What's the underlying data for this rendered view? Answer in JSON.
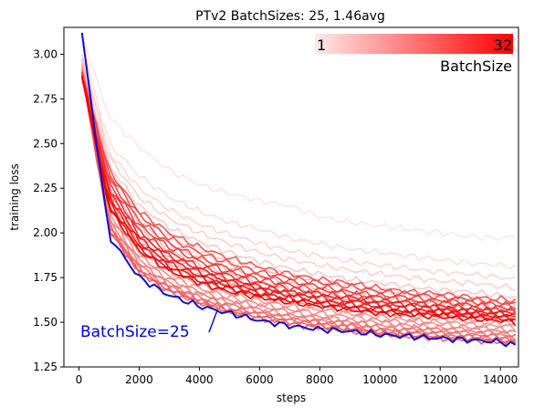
{
  "chart_data": {
    "type": "line",
    "title": "PTv2 BatchSizes: 25, 1.46avg",
    "xlabel": "steps",
    "ylabel": "training loss",
    "xlim": [
      -500,
      14600
    ],
    "ylim": [
      1.25,
      3.15
    ],
    "x_ticks": [
      0,
      2000,
      4000,
      6000,
      8000,
      10000,
      12000,
      14000
    ],
    "y_ticks": [
      1.25,
      1.5,
      1.75,
      2.0,
      2.25,
      2.5,
      2.75,
      3.0
    ],
    "y_tick_labels": [
      "1.25",
      "1.50",
      "1.75",
      "2.00",
      "2.25",
      "2.50",
      "2.75",
      "3.00"
    ],
    "grid": false,
    "colorbar": {
      "label": "BatchSize",
      "min_label": "1",
      "max_label": "32",
      "colors": [
        "#ffe9e9",
        "#ff0000"
      ]
    },
    "series_style": {
      "colormap_low": "#ffe4e4",
      "colormap_high": "#ee0000",
      "highlight_color": "#1010cc"
    },
    "series": [
      {
        "batch": 1,
        "values": [
          3.1,
          2.65,
          2.48,
          2.35,
          2.27,
          2.22,
          2.18,
          2.15,
          2.09,
          2.06,
          2.04,
          2.02,
          2.0,
          1.98,
          1.97,
          1.98
        ]
      },
      {
        "batch": 2,
        "values": [
          3.05,
          2.5,
          2.32,
          2.2,
          2.12,
          2.06,
          2.02,
          1.97,
          1.94,
          1.91,
          1.89,
          1.87,
          1.85,
          1.83,
          1.82,
          1.81
        ]
      },
      {
        "batch": 3,
        "values": [
          3.0,
          2.45,
          2.25,
          2.13,
          2.05,
          1.99,
          1.94,
          1.9,
          1.87,
          1.84,
          1.82,
          1.8,
          1.78,
          1.77,
          1.75,
          1.74
        ]
      },
      {
        "batch": 4,
        "values": [
          3.0,
          2.42,
          2.2,
          2.08,
          2.0,
          1.94,
          1.89,
          1.85,
          1.82,
          1.79,
          1.77,
          1.75,
          1.73,
          1.72,
          1.7,
          1.69
        ]
      },
      {
        "batch": 5,
        "values": [
          2.98,
          2.38,
          2.15,
          2.03,
          1.95,
          1.89,
          1.84,
          1.8,
          1.77,
          1.74,
          1.72,
          1.7,
          1.68,
          1.67,
          1.65,
          1.64
        ]
      },
      {
        "batch": 6,
        "values": [
          2.97,
          2.34,
          2.1,
          1.98,
          1.9,
          1.84,
          1.8,
          1.76,
          1.73,
          1.7,
          1.68,
          1.66,
          1.64,
          1.63,
          1.61,
          1.6
        ]
      },
      {
        "batch": 7,
        "values": [
          2.95,
          2.3,
          2.06,
          1.94,
          1.86,
          1.8,
          1.76,
          1.72,
          1.69,
          1.66,
          1.64,
          1.62,
          1.61,
          1.59,
          1.58,
          1.57
        ]
      },
      {
        "batch": 8,
        "values": [
          2.95,
          2.26,
          2.02,
          1.9,
          1.82,
          1.77,
          1.72,
          1.69,
          1.66,
          1.63,
          1.61,
          1.59,
          1.58,
          1.56,
          1.55,
          1.54
        ]
      },
      {
        "batch": 9,
        "values": [
          2.94,
          2.22,
          1.98,
          1.86,
          1.79,
          1.73,
          1.69,
          1.66,
          1.63,
          1.61,
          1.59,
          1.57,
          1.56,
          1.54,
          1.53,
          1.52
        ]
      },
      {
        "batch": 10,
        "values": [
          2.93,
          2.19,
          1.95,
          1.83,
          1.76,
          1.71,
          1.67,
          1.63,
          1.61,
          1.58,
          1.57,
          1.55,
          1.54,
          1.52,
          1.51,
          1.5
        ]
      },
      {
        "batch": 11,
        "values": [
          2.93,
          2.16,
          1.92,
          1.8,
          1.73,
          1.68,
          1.64,
          1.61,
          1.58,
          1.56,
          1.55,
          1.53,
          1.52,
          1.5,
          1.49,
          1.48
        ]
      },
      {
        "batch": 12,
        "values": [
          2.92,
          2.13,
          1.89,
          1.78,
          1.71,
          1.66,
          1.62,
          1.59,
          1.57,
          1.55,
          1.53,
          1.51,
          1.5,
          1.49,
          1.48,
          1.47
        ]
      },
      {
        "batch": 13,
        "values": [
          2.92,
          2.11,
          1.87,
          1.76,
          1.69,
          1.64,
          1.6,
          1.57,
          1.55,
          1.53,
          1.51,
          1.5,
          1.49,
          1.47,
          1.46,
          1.45
        ]
      },
      {
        "batch": 14,
        "values": [
          2.91,
          2.09,
          1.85,
          1.74,
          1.67,
          1.62,
          1.59,
          1.56,
          1.53,
          1.51,
          1.5,
          1.48,
          1.47,
          1.46,
          1.45,
          1.44
        ]
      },
      {
        "batch": 15,
        "values": [
          2.91,
          2.07,
          1.83,
          1.72,
          1.66,
          1.61,
          1.57,
          1.54,
          1.52,
          1.5,
          1.48,
          1.47,
          1.46,
          1.45,
          1.44,
          1.43
        ]
      },
      {
        "batch": 16,
        "values": [
          2.9,
          2.05,
          1.82,
          1.71,
          1.64,
          1.6,
          1.56,
          1.53,
          1.51,
          1.49,
          1.47,
          1.46,
          1.45,
          1.44,
          1.43,
          1.42
        ]
      },
      {
        "batch": 17,
        "values": [
          2.9,
          2.04,
          1.8,
          1.7,
          1.63,
          1.58,
          1.55,
          1.52,
          1.5,
          1.48,
          1.46,
          1.45,
          1.44,
          1.43,
          1.42,
          1.41
        ]
      },
      {
        "batch": 18,
        "values": [
          2.9,
          2.03,
          1.79,
          1.69,
          1.62,
          1.57,
          1.54,
          1.51,
          1.49,
          1.47,
          1.45,
          1.44,
          1.43,
          1.42,
          1.41,
          1.4
        ]
      },
      {
        "batch": 19,
        "values": [
          2.89,
          2.02,
          1.78,
          1.68,
          1.61,
          1.56,
          1.53,
          1.5,
          1.48,
          1.46,
          1.44,
          1.43,
          1.42,
          1.41,
          1.4,
          1.39
        ]
      },
      {
        "batch": 20,
        "values": [
          2.89,
          2.02,
          1.78,
          1.67,
          1.61,
          1.56,
          1.52,
          1.49,
          1.47,
          1.45,
          1.44,
          1.42,
          1.41,
          1.4,
          1.39,
          1.39
        ]
      },
      {
        "batch": 21,
        "values": [
          2.9,
          2.35,
          2.12,
          2.0,
          1.92,
          1.86,
          1.81,
          1.77,
          1.74,
          1.72,
          1.69,
          1.67,
          1.66,
          1.64,
          1.63,
          1.62
        ]
      },
      {
        "batch": 22,
        "values": [
          2.9,
          2.33,
          2.1,
          1.97,
          1.89,
          1.83,
          1.78,
          1.75,
          1.72,
          1.7,
          1.67,
          1.66,
          1.64,
          1.63,
          1.61,
          1.6
        ]
      },
      {
        "batch": 23,
        "values": [
          2.9,
          2.3,
          2.07,
          1.94,
          1.86,
          1.8,
          1.76,
          1.73,
          1.7,
          1.67,
          1.65,
          1.64,
          1.62,
          1.61,
          1.6,
          1.59
        ]
      },
      {
        "batch": 24,
        "values": [
          2.89,
          2.28,
          2.04,
          1.92,
          1.84,
          1.78,
          1.74,
          1.71,
          1.68,
          1.66,
          1.64,
          1.62,
          1.61,
          1.6,
          1.58,
          1.57
        ]
      },
      {
        "batch": 26,
        "values": [
          2.89,
          2.25,
          2.01,
          1.89,
          1.81,
          1.76,
          1.72,
          1.69,
          1.66,
          1.64,
          1.62,
          1.61,
          1.59,
          1.58,
          1.57,
          1.56
        ]
      },
      {
        "batch": 27,
        "values": [
          2.88,
          2.23,
          1.99,
          1.87,
          1.8,
          1.74,
          1.7,
          1.67,
          1.65,
          1.63,
          1.61,
          1.6,
          1.58,
          1.57,
          1.56,
          1.55
        ]
      },
      {
        "batch": 28,
        "values": [
          2.88,
          2.21,
          1.97,
          1.85,
          1.78,
          1.73,
          1.69,
          1.66,
          1.64,
          1.62,
          1.6,
          1.59,
          1.57,
          1.56,
          1.55,
          1.54
        ]
      },
      {
        "batch": 29,
        "values": [
          2.88,
          2.19,
          1.95,
          1.83,
          1.76,
          1.71,
          1.68,
          1.65,
          1.62,
          1.6,
          1.59,
          1.57,
          1.56,
          1.55,
          1.54,
          1.53
        ]
      },
      {
        "batch": 30,
        "values": [
          2.87,
          2.17,
          1.93,
          1.81,
          1.75,
          1.7,
          1.66,
          1.63,
          1.61,
          1.59,
          1.57,
          1.56,
          1.55,
          1.54,
          1.53,
          1.52
        ]
      },
      {
        "batch": 31,
        "values": [
          2.87,
          2.15,
          1.91,
          1.8,
          1.73,
          1.69,
          1.65,
          1.62,
          1.6,
          1.58,
          1.56,
          1.55,
          1.54,
          1.53,
          1.52,
          1.51
        ]
      },
      {
        "batch": 32,
        "values": [
          2.87,
          2.14,
          1.9,
          1.79,
          1.72,
          1.67,
          1.64,
          1.61,
          1.59,
          1.57,
          1.55,
          1.54,
          1.53,
          1.52,
          1.51,
          1.5
        ]
      }
    ],
    "highlight": {
      "name": "BatchSize=25",
      "values": [
        3.12,
        1.98,
        1.75,
        1.65,
        1.59,
        1.55,
        1.51,
        1.48,
        1.46,
        1.45,
        1.43,
        1.42,
        1.41,
        1.4,
        1.39,
        1.37
      ]
    },
    "step_x": [
      100,
      1000,
      2000,
      3000,
      4000,
      5000,
      6000,
      7000,
      8000,
      9000,
      10000,
      11000,
      12000,
      13000,
      14000,
      14500
    ]
  }
}
